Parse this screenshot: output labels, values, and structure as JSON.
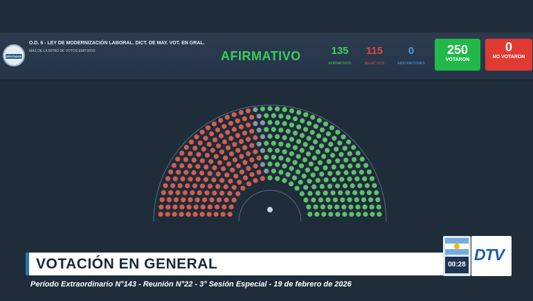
{
  "header": {
    "logo_text": "DIPUTADOS",
    "title": "O.D. 6 - LEY DE MODERNIZACIÓN LABORAL. DICT. DE MAY. VOT. EN GRAL.",
    "subtitle": "MÁS DE LA MITAD DE VOTOS EMITIDOS",
    "result": "AFIRMATIVO",
    "afirmativos": {
      "value": "135",
      "label": "AFIRMATIVOS"
    },
    "negativos": {
      "value": "115",
      "label": "NEGATIVOS"
    },
    "abstenciones": {
      "value": "0",
      "label": "ABSTENCIONES"
    },
    "votaron": {
      "value": "250",
      "label": "VOTARON"
    },
    "no_votaron": {
      "value": "0",
      "label": "NO VOTARON"
    }
  },
  "colors": {
    "afirmativo": "#35d05a",
    "negativo": "#e04848",
    "abstencion": "#4a9fe0",
    "votaron_box": "#22b84a",
    "no_votaron_box": "#e03a32",
    "seat_green": "#5fbf6c",
    "seat_red": "#d25e4e",
    "seat_empty": "#8a96a3"
  },
  "chamber": {
    "seats_afirmativo": 135,
    "seats_negativo": 115,
    "seats_vacantes": 7
  },
  "lower": {
    "title": "VOTACIÓN EN GENERAL",
    "subline": "Período Extraordinario N°143 - Reunión N°22 - 3° Sesión Especial - 19 de febrero de 2026",
    "clock": "00:28",
    "channel": "DTV"
  }
}
